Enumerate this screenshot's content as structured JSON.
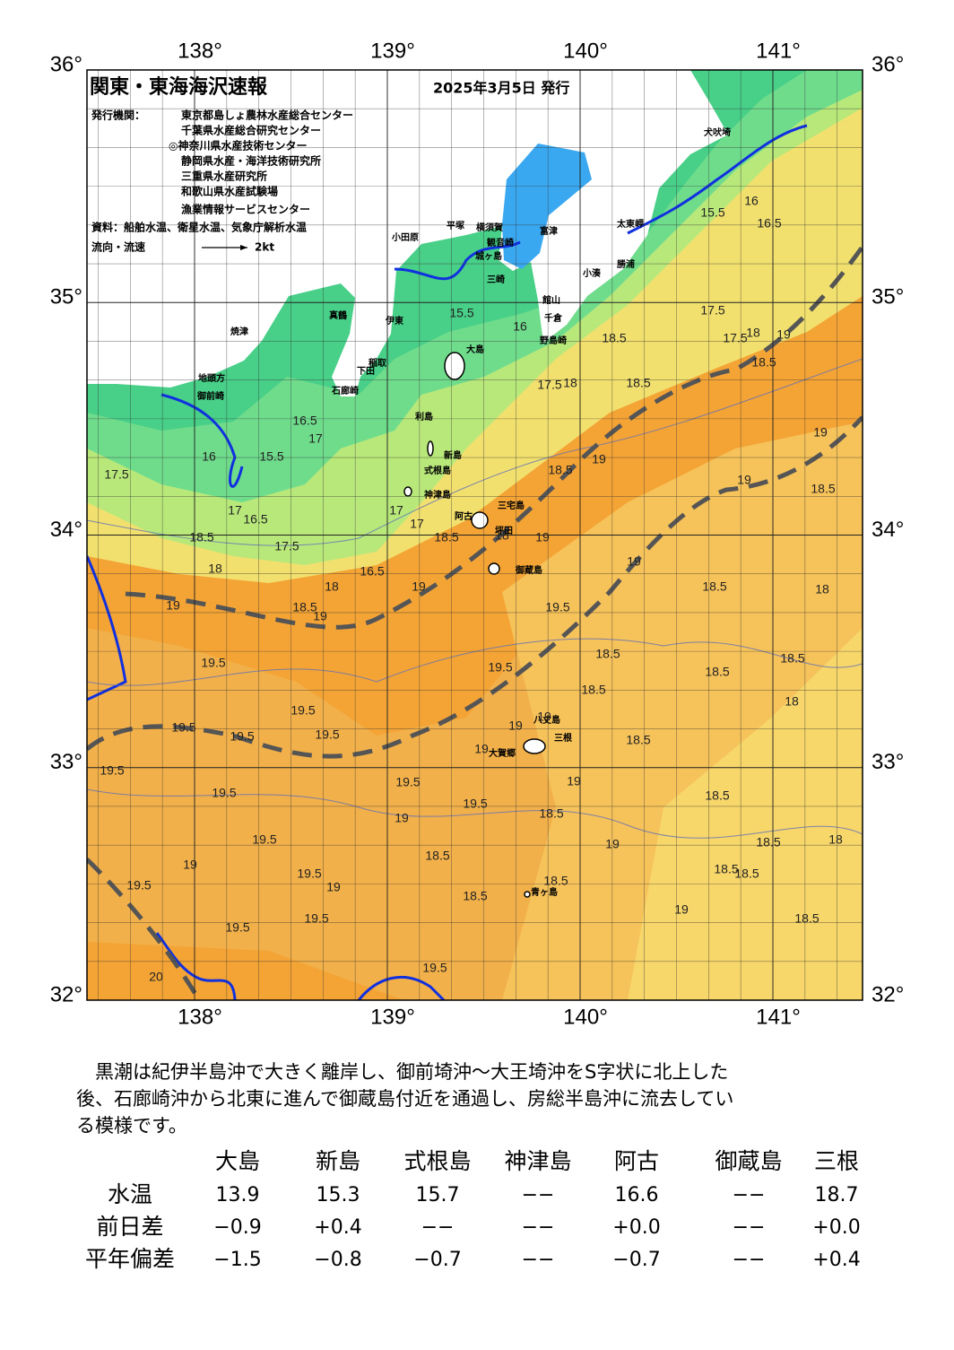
{
  "map": {
    "title": "関東・東海海沢速報",
    "issued": "2025年3月5日 発行",
    "issuer_label": "発行機関：",
    "issuers": [
      "東京都島しょ農林水産総合センター",
      "千葉県水産総合研究センター",
      "◎神奈川県水産技術センター",
      "静岡県水産・海洋技術研究所",
      "三重県水産研究所",
      "和歌山県水産試験場",
      "漁業情報サービスセンター"
    ],
    "source": "資料：船舶水温、衛星水温、気象庁解析水温",
    "flow_label": "流向・流速",
    "flow_scale": "2kt",
    "lon_ticks": [
      {
        "value": 138,
        "label": "138°"
      },
      {
        "value": 139,
        "label": "139°"
      },
      {
        "value": 140,
        "label": "140°"
      },
      {
        "value": 141,
        "label": "141°"
      }
    ],
    "lat_ticks": [
      {
        "value": 32,
        "label": "32°"
      },
      {
        "value": 33,
        "label": "33°"
      },
      {
        "value": 34,
        "label": "34°"
      },
      {
        "value": 35,
        "label": "35°"
      },
      {
        "value": 36,
        "label": "36°"
      }
    ],
    "places": [
      "犬吠埼",
      "太東岬",
      "勝浦",
      "小湊",
      "館山",
      "千倉",
      "野島崎",
      "富津",
      "横須賀",
      "観音崎",
      "城ヶ島",
      "三崎",
      "平塚",
      "小田原",
      "真鶴",
      "伊東",
      "焼津",
      "地頭方",
      "御前崎",
      "稲取",
      "下田",
      "石廊崎",
      "大島",
      "利島",
      "新島",
      "式根島",
      "神津島",
      "阿古",
      "三宅島",
      "坪田",
      "御蔵島",
      "八丈島",
      "三根",
      "大賀郷",
      "青ヶ島"
    ],
    "contour_labels": [
      "15.5",
      "16",
      "16.5",
      "17.5",
      "17.5",
      "18",
      "19",
      "18.5",
      "18.5",
      "18.5",
      "18",
      "17.5",
      "15.5",
      "16",
      "16.5",
      "17",
      "15.5",
      "16",
      "17.5",
      "17",
      "16.5",
      "17.5",
      "18.5",
      "18",
      "16.5",
      "17",
      "17",
      "18.5",
      "18",
      "19",
      "18.5",
      "19",
      "19",
      "18.5",
      "19",
      "18.5",
      "18",
      "19",
      "18",
      "19",
      "18.5",
      "19",
      "19",
      "19.5",
      "18.5",
      "18.5",
      "18.5",
      "18.5",
      "19.5",
      "19.5",
      "19.5",
      "19.5",
      "19.5",
      "19.5",
      "19.5",
      "19",
      "19",
      "19",
      "18.5",
      "18.5",
      "19",
      "19.5",
      "19.5",
      "19.5",
      "19",
      "18.5",
      "19",
      "18.5",
      "18",
      "18.5",
      "18.5",
      "19.5",
      "19",
      "19.5",
      "19.5",
      "19",
      "18.5",
      "18.5",
      "18.5",
      "19",
      "18.5",
      "19.5",
      "19.5",
      "19.5",
      "20",
      "18"
    ]
  },
  "summary_lines": [
    "　黒潮は紀伊半島沖で大きく離岸し、御前埼沖～大王埼沖をS字状に北上した",
    "後、石廊崎沖から北東に進んで御蔵島付近を通過し、房総半島沖に流去してい",
    "る模様です。"
  ],
  "table": {
    "columns": [
      "大島",
      "新島",
      "式根島",
      "神津島",
      "阿古",
      "御蔵島",
      "三根"
    ],
    "rows": [
      [
        "水温",
        "13.9",
        "15.3",
        "15.7",
        "−−",
        "16.6",
        "−−",
        "18.7"
      ],
      [
        "前日差",
        "−0.9",
        "+0.4",
        "−−",
        "−−",
        "+0.0",
        "−−",
        "+0.0"
      ],
      [
        "平年偏差",
        "−1.5",
        "−0.8",
        "−0.7",
        "−−",
        "−0.7",
        "−−",
        "+0.4"
      ]
    ]
  }
}
